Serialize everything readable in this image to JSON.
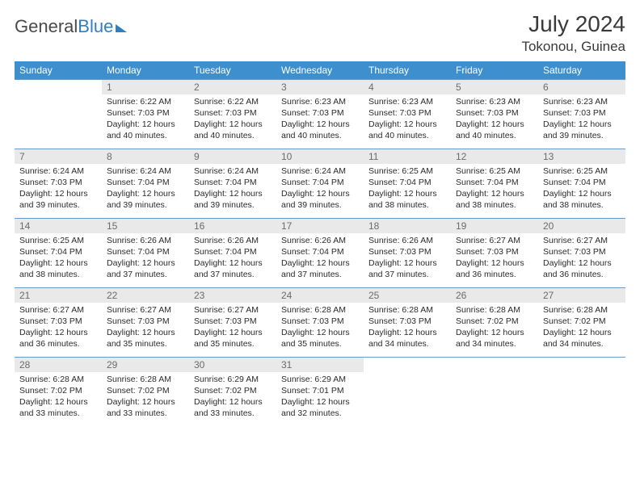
{
  "brand": {
    "part1": "General",
    "part2": "Blue"
  },
  "title": "July 2024",
  "location": "Tokonou, Guinea",
  "colors": {
    "header_bg": "#3e8fce",
    "header_text": "#ffffff",
    "daynum_bg": "#e9e9e9",
    "daynum_text": "#6b6b6b",
    "row_border": "#6a9acb",
    "body_text": "#2b2b2b",
    "logo_blue": "#2f7fc1"
  },
  "weekdays": [
    "Sunday",
    "Monday",
    "Tuesday",
    "Wednesday",
    "Thursday",
    "Friday",
    "Saturday"
  ],
  "weeks": [
    [
      null,
      {
        "n": "1",
        "sr": "6:22 AM",
        "ss": "7:03 PM",
        "dl": "12 hours and 40 minutes."
      },
      {
        "n": "2",
        "sr": "6:22 AM",
        "ss": "7:03 PM",
        "dl": "12 hours and 40 minutes."
      },
      {
        "n": "3",
        "sr": "6:23 AM",
        "ss": "7:03 PM",
        "dl": "12 hours and 40 minutes."
      },
      {
        "n": "4",
        "sr": "6:23 AM",
        "ss": "7:03 PM",
        "dl": "12 hours and 40 minutes."
      },
      {
        "n": "5",
        "sr": "6:23 AM",
        "ss": "7:03 PM",
        "dl": "12 hours and 40 minutes."
      },
      {
        "n": "6",
        "sr": "6:23 AM",
        "ss": "7:03 PM",
        "dl": "12 hours and 39 minutes."
      }
    ],
    [
      {
        "n": "7",
        "sr": "6:24 AM",
        "ss": "7:03 PM",
        "dl": "12 hours and 39 minutes."
      },
      {
        "n": "8",
        "sr": "6:24 AM",
        "ss": "7:04 PM",
        "dl": "12 hours and 39 minutes."
      },
      {
        "n": "9",
        "sr": "6:24 AM",
        "ss": "7:04 PM",
        "dl": "12 hours and 39 minutes."
      },
      {
        "n": "10",
        "sr": "6:24 AM",
        "ss": "7:04 PM",
        "dl": "12 hours and 39 minutes."
      },
      {
        "n": "11",
        "sr": "6:25 AM",
        "ss": "7:04 PM",
        "dl": "12 hours and 38 minutes."
      },
      {
        "n": "12",
        "sr": "6:25 AM",
        "ss": "7:04 PM",
        "dl": "12 hours and 38 minutes."
      },
      {
        "n": "13",
        "sr": "6:25 AM",
        "ss": "7:04 PM",
        "dl": "12 hours and 38 minutes."
      }
    ],
    [
      {
        "n": "14",
        "sr": "6:25 AM",
        "ss": "7:04 PM",
        "dl": "12 hours and 38 minutes."
      },
      {
        "n": "15",
        "sr": "6:26 AM",
        "ss": "7:04 PM",
        "dl": "12 hours and 37 minutes."
      },
      {
        "n": "16",
        "sr": "6:26 AM",
        "ss": "7:04 PM",
        "dl": "12 hours and 37 minutes."
      },
      {
        "n": "17",
        "sr": "6:26 AM",
        "ss": "7:04 PM",
        "dl": "12 hours and 37 minutes."
      },
      {
        "n": "18",
        "sr": "6:26 AM",
        "ss": "7:03 PM",
        "dl": "12 hours and 37 minutes."
      },
      {
        "n": "19",
        "sr": "6:27 AM",
        "ss": "7:03 PM",
        "dl": "12 hours and 36 minutes."
      },
      {
        "n": "20",
        "sr": "6:27 AM",
        "ss": "7:03 PM",
        "dl": "12 hours and 36 minutes."
      }
    ],
    [
      {
        "n": "21",
        "sr": "6:27 AM",
        "ss": "7:03 PM",
        "dl": "12 hours and 36 minutes."
      },
      {
        "n": "22",
        "sr": "6:27 AM",
        "ss": "7:03 PM",
        "dl": "12 hours and 35 minutes."
      },
      {
        "n": "23",
        "sr": "6:27 AM",
        "ss": "7:03 PM",
        "dl": "12 hours and 35 minutes."
      },
      {
        "n": "24",
        "sr": "6:28 AM",
        "ss": "7:03 PM",
        "dl": "12 hours and 35 minutes."
      },
      {
        "n": "25",
        "sr": "6:28 AM",
        "ss": "7:03 PM",
        "dl": "12 hours and 34 minutes."
      },
      {
        "n": "26",
        "sr": "6:28 AM",
        "ss": "7:02 PM",
        "dl": "12 hours and 34 minutes."
      },
      {
        "n": "27",
        "sr": "6:28 AM",
        "ss": "7:02 PM",
        "dl": "12 hours and 34 minutes."
      }
    ],
    [
      {
        "n": "28",
        "sr": "6:28 AM",
        "ss": "7:02 PM",
        "dl": "12 hours and 33 minutes."
      },
      {
        "n": "29",
        "sr": "6:28 AM",
        "ss": "7:02 PM",
        "dl": "12 hours and 33 minutes."
      },
      {
        "n": "30",
        "sr": "6:29 AM",
        "ss": "7:02 PM",
        "dl": "12 hours and 33 minutes."
      },
      {
        "n": "31",
        "sr": "6:29 AM",
        "ss": "7:01 PM",
        "dl": "12 hours and 32 minutes."
      },
      null,
      null,
      null
    ]
  ],
  "labels": {
    "sunrise": "Sunrise:",
    "sunset": "Sunset:",
    "daylight": "Daylight:"
  }
}
